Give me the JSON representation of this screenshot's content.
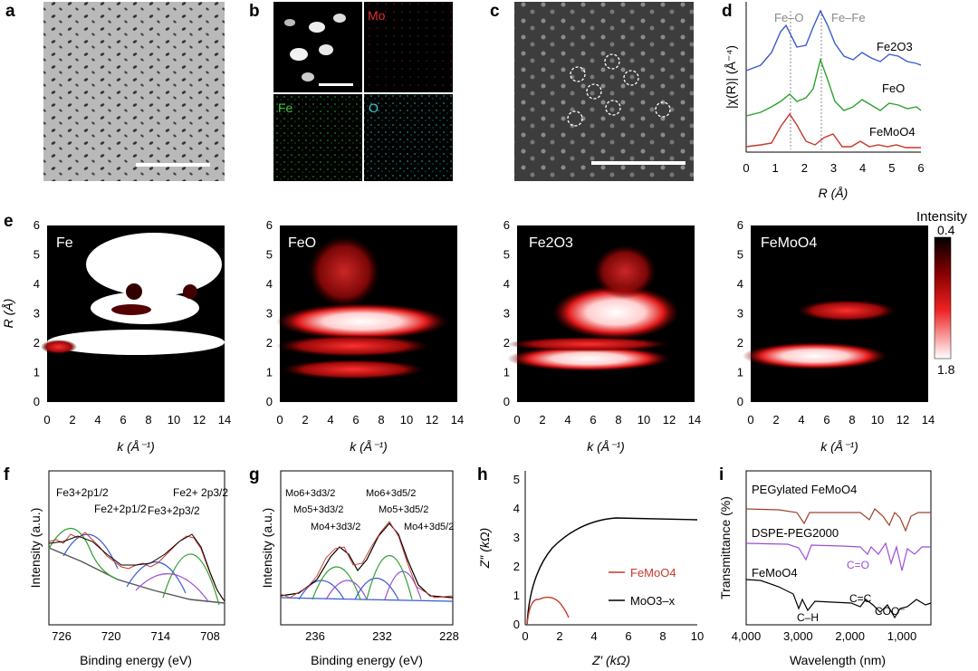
{
  "panels": {
    "a": {
      "label": "a"
    },
    "b": {
      "label": "b",
      "channels": [
        "Mo",
        "Fe",
        "O"
      ]
    },
    "c": {
      "label": "c"
    },
    "d": {
      "label": "d",
      "ylabel": "|χ(R)| (Å⁻⁴)",
      "xlabel": "R (Å)",
      "xticks": [
        "0",
        "1",
        "2",
        "3",
        "4",
        "5",
        "6"
      ],
      "peak_labels": [
        "Fe–O",
        "Fe–Fe"
      ],
      "series_labels": [
        "Fe2O3",
        "FeO",
        "FeMoO4"
      ]
    },
    "e": {
      "label": "e",
      "ylabel": "R (Å)",
      "xlabel": "k (Å⁻¹)",
      "yticks": [
        "0",
        "1",
        "2",
        "3",
        "4",
        "5",
        "6"
      ],
      "xticks": [
        "0",
        "2",
        "4",
        "6",
        "8",
        "10",
        "12",
        "14"
      ],
      "maps": [
        "Fe",
        "FeO",
        "Fe2O3",
        "FeMoO4"
      ],
      "colorbar": {
        "title": "Intensity",
        "max": "0.4",
        "min": "1.8"
      }
    },
    "f": {
      "label": "f",
      "ylabel": "Intensity (a.u.)",
      "xlabel": "Binding energy (eV)",
      "xticks": [
        "726",
        "720",
        "714",
        "708"
      ],
      "peaks": [
        "Fe3+2p1/2",
        "Fe2+2p1/2",
        "Fe3+2p3/2",
        "Fe2+ 2p3/2"
      ]
    },
    "g": {
      "label": "g",
      "ylabel": "Intensity (a.u.)",
      "xlabel": "Binding energy (eV)",
      "xticks": [
        "236",
        "232",
        "228"
      ],
      "peaks": [
        "Mo6+3d3/2",
        "Mo5+3d3/2",
        "Mo4+3d3/2",
        "Mo6+3d5/2",
        "Mo5+3d5/2",
        "Mo4+3d5/2"
      ]
    },
    "h": {
      "label": "h",
      "ylabel": "Z″ (kΩ)",
      "xlabel": "Z′ (kΩ)",
      "xticks": [
        "0",
        "2",
        "4",
        "6",
        "8",
        "10"
      ],
      "yticks": [
        "0",
        "1",
        "2",
        "3",
        "4",
        "5"
      ],
      "legend": [
        "FeMoO4",
        "MoO3–x"
      ]
    },
    "i": {
      "label": "i",
      "ylabel": "Transmittance (%)",
      "xlabel": "Wavelength (nm)",
      "xticks": [
        "4,000",
        "3,000",
        "2,000",
        "1,000"
      ],
      "traces": [
        "PEGylated FeMoO4",
        "DSPE-PEG2000",
        "FeMoO4"
      ],
      "annotations": [
        "C=O",
        "C=C",
        "COO⁻",
        "C–H"
      ]
    }
  },
  "colors": {
    "red": "#c8372b",
    "green": "#2fa02f",
    "blue": "#3a5bd0",
    "purple": "#9b4fd6",
    "black": "#000000",
    "brown": "#a0402a"
  }
}
